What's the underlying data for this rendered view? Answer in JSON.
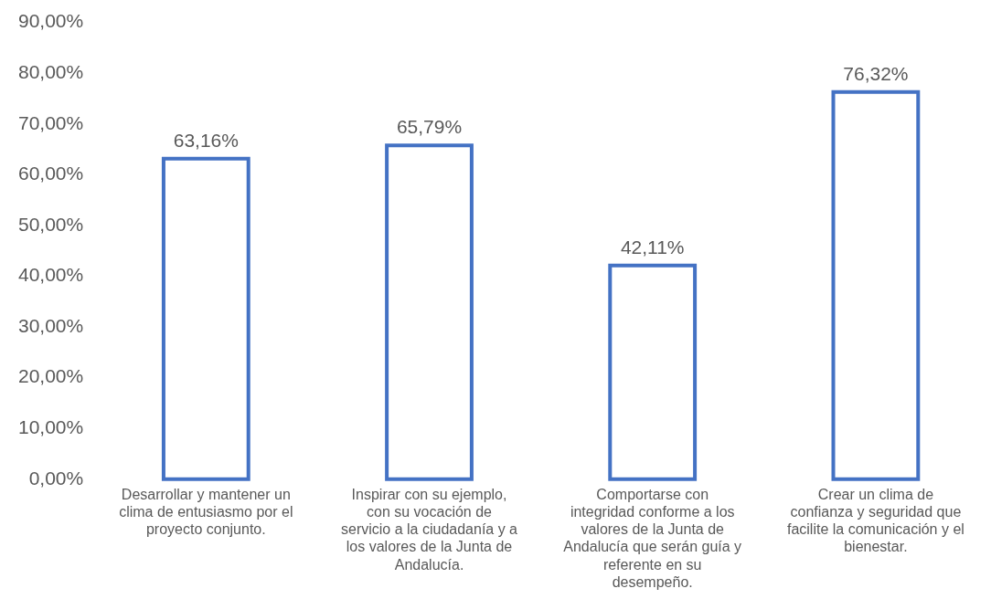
{
  "chart_data": {
    "type": "bar",
    "categories": [
      "Desarrollar y mantener un clima de entusiasmo por el proyecto conjunto.",
      "Inspirar con su ejemplo, con su vocación de servicio a la ciudadanía y a los valores de la Junta de Andalucía.",
      "Comportarse con integridad conforme a los valores de la Junta de Andalucía que serán guía y referente en su desempeño.",
      "Crear un clima de confianza y seguridad que facilite la comunicación y el bienestar."
    ],
    "values": [
      63.16,
      65.79,
      42.11,
      76.32
    ],
    "value_labels": [
      "63,16%",
      "65,79%",
      "42,11%",
      "76,32%"
    ],
    "color": "#4472c4",
    "ylim": [
      0,
      90
    ],
    "yticks": [
      {
        "value": 0,
        "label": "0,00%"
      },
      {
        "value": 10,
        "label": "10,00%"
      },
      {
        "value": 20,
        "label": "20,00%"
      },
      {
        "value": 30,
        "label": "30,00%"
      },
      {
        "value": 40,
        "label": "40,00%"
      },
      {
        "value": 50,
        "label": "50,00%"
      },
      {
        "value": 60,
        "label": "60,00%"
      },
      {
        "value": 70,
        "label": "70,00%"
      },
      {
        "value": 80,
        "label": "80,00%"
      },
      {
        "value": 90,
        "label": "90,00%"
      }
    ],
    "grid": false,
    "legend": false
  }
}
